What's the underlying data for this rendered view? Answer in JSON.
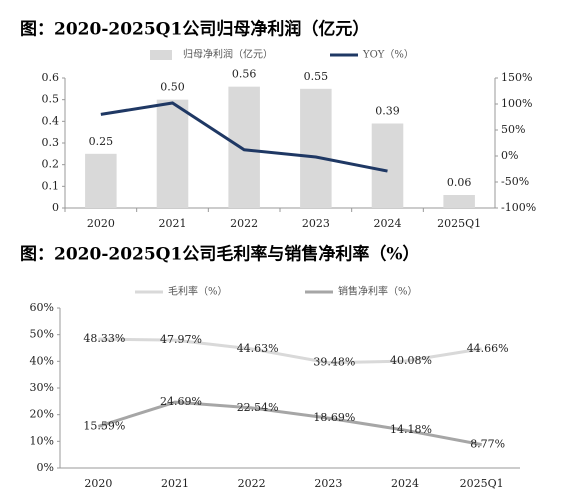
{
  "chart_data": [
    {
      "type": "combo",
      "title": "图：2020-2025Q1公司归母净利润（亿元）",
      "categories": [
        "2020",
        "2021",
        "2022",
        "2023",
        "2024",
        "2025Q1"
      ],
      "series": [
        {
          "name": "归母净利润（亿元）",
          "type": "bar",
          "color": "#d9d9d9",
          "values": [
            0.25,
            0.5,
            0.56,
            0.55,
            0.39,
            0.06
          ],
          "value_labels": [
            "0.25",
            "0.50",
            "0.56",
            "0.55",
            "0.39",
            "0.06"
          ]
        },
        {
          "name": "YOY（%）",
          "type": "line",
          "axis": "y2",
          "color": "#1f3864",
          "values": [
            80,
            102,
            12,
            -2,
            -29,
            null
          ]
        }
      ],
      "ylim": [
        0,
        0.6
      ],
      "yticks": [
        0,
        0.1,
        0.2,
        0.3,
        0.4,
        0.5,
        0.6
      ],
      "y2lim": [
        -100,
        150
      ],
      "y2ticks": [
        {
          "value": -100,
          "label": "-100%"
        },
        {
          "value": -50,
          "label": "-50%"
        },
        {
          "value": 0,
          "label": "0%"
        },
        {
          "value": 50,
          "label": "50%"
        },
        {
          "value": 100,
          "label": "100%"
        },
        {
          "value": 150,
          "label": "150%"
        }
      ]
    },
    {
      "type": "line",
      "title": "图：2020-2025Q1公司毛利率与销售净利率（%）",
      "categories": [
        "2020",
        "2021",
        "2022",
        "2023",
        "2024",
        "2025Q1"
      ],
      "series": [
        {
          "name": "毛利率（%）",
          "color": "#d9d9d9",
          "values": [
            48.33,
            47.97,
            44.63,
            39.48,
            40.08,
            44.66
          ],
          "value_labels": [
            "48.33%",
            "47.97%",
            "44.63%",
            "39.48%",
            "40.08%",
            "44.66%"
          ]
        },
        {
          "name": "销售净利率（%）",
          "color": "#a6a6a6",
          "values": [
            15.59,
            24.69,
            22.54,
            18.69,
            14.18,
            8.77
          ],
          "value_labels": [
            "15.59%",
            "24.69%",
            "22.54%",
            "18.69%",
            "14.18%",
            "8.77%"
          ]
        }
      ],
      "ylim": [
        0,
        60
      ],
      "yticks": [
        {
          "value": 0,
          "label": "0%"
        },
        {
          "value": 10,
          "label": "10%"
        },
        {
          "value": 20,
          "label": "20%"
        },
        {
          "value": 30,
          "label": "30%"
        },
        {
          "value": 40,
          "label": "40%"
        },
        {
          "value": 50,
          "label": "50%"
        },
        {
          "value": 60,
          "label": "60%"
        }
      ]
    }
  ]
}
